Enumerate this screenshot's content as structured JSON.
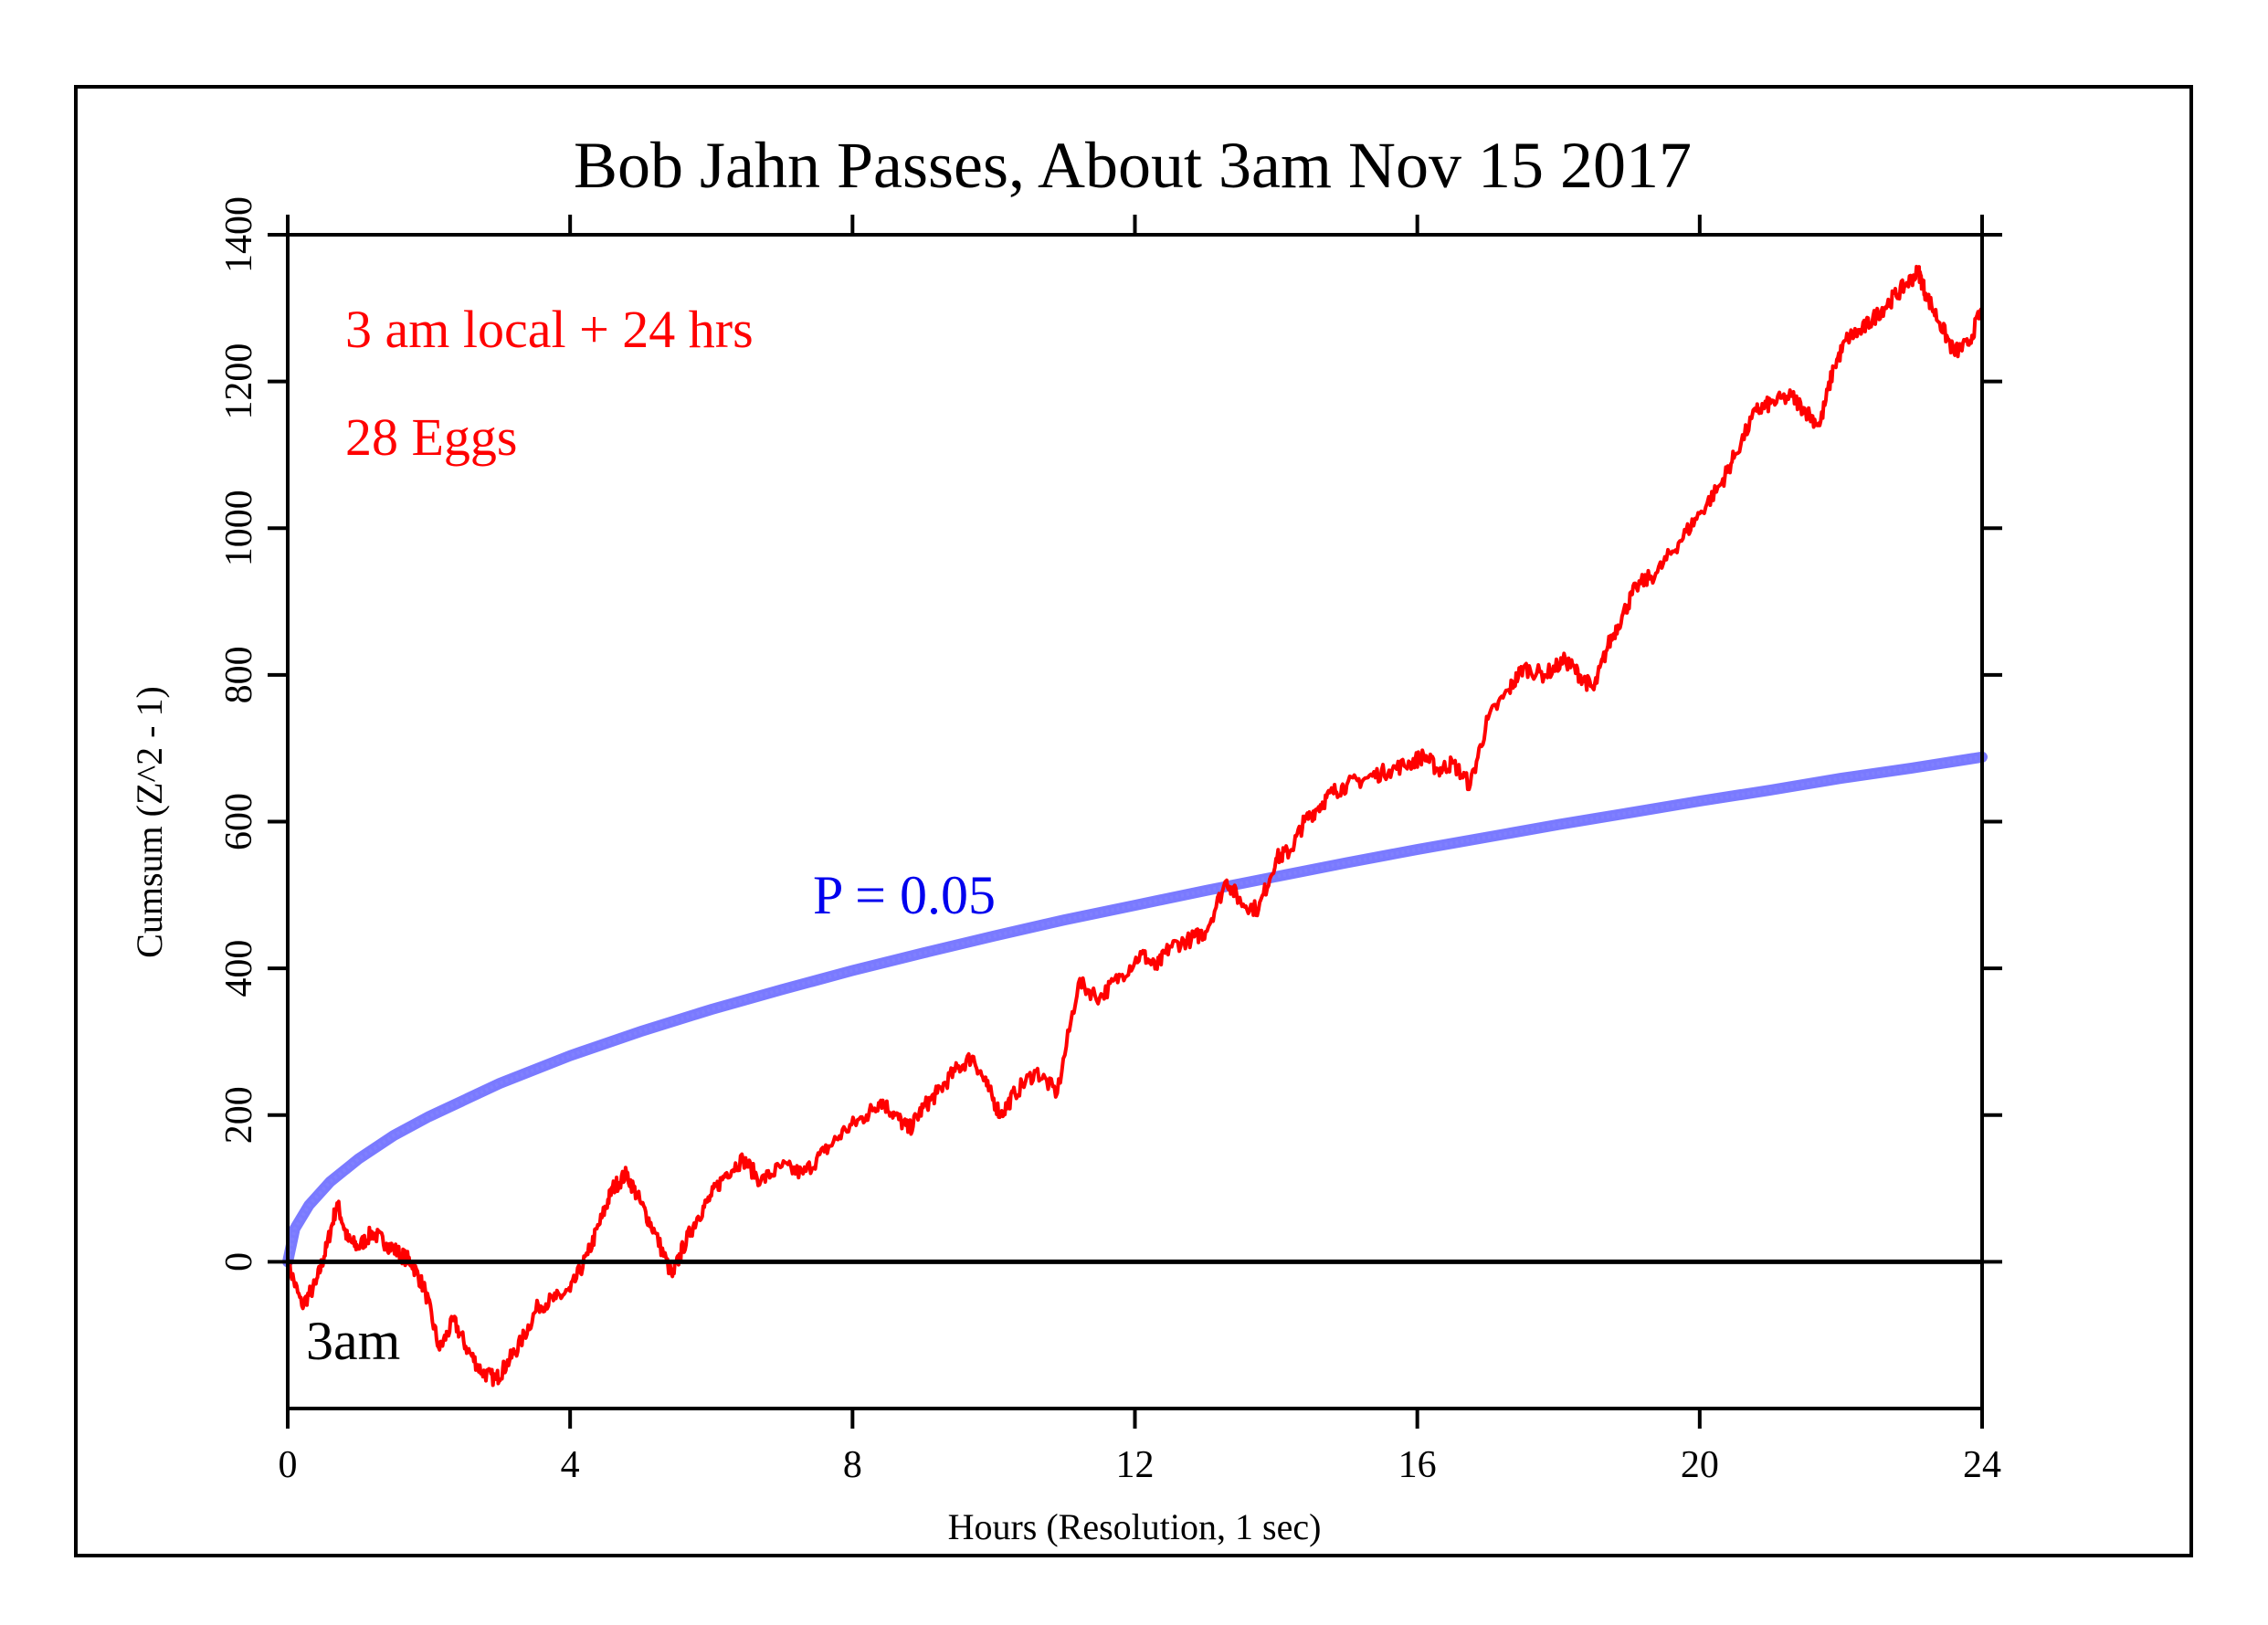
{
  "chart_data": {
    "type": "line",
    "title": "Bob Jahn Passes, About 3am Nov 15 2017",
    "xlabel": "Hours (Resolution, 1 sec)",
    "ylabel": "Cumsum (Z^2 - 1)",
    "xlim": [
      0,
      24
    ],
    "ylim": [
      -200,
      1400
    ],
    "xticks": [
      "0",
      "4",
      "8",
      "12",
      "16",
      "20",
      "24"
    ],
    "yticks": [
      "0",
      "200",
      "400",
      "600",
      "800",
      "1000",
      "1200",
      "1400"
    ],
    "grid": false,
    "annotations": {
      "period": "3 am local + 24 hrs",
      "eggs": "28 Eggs",
      "probability": "P = 0.05",
      "event_marker": "3am"
    },
    "colors": {
      "cumsum": "#ff0000",
      "probability": "#3333ff",
      "axis": "#000000"
    },
    "series": [
      {
        "key": "cumsum",
        "x": [
          0,
          0.2,
          0.4,
          0.55,
          0.7,
          0.85,
          1.0,
          1.2,
          1.4,
          1.6,
          1.75,
          1.95,
          2.15,
          2.35,
          2.55,
          2.75,
          2.95,
          3.1,
          3.3,
          3.55,
          3.8,
          4.0,
          4.25,
          4.45,
          4.6,
          4.8,
          5.0,
          5.2,
          5.45,
          5.6,
          5.8,
          6.0,
          6.2,
          6.45,
          6.7,
          7.0,
          7.3,
          7.6,
          7.9,
          8.2,
          8.4,
          8.6,
          8.8,
          9.0,
          9.2,
          9.45,
          9.7,
          9.9,
          10.1,
          10.3,
          10.6,
          10.9,
          11.2,
          11.5,
          11.8,
          12.1,
          12.3,
          12.5,
          12.8,
          13.0,
          13.3,
          13.5,
          13.75,
          14.0,
          14.2,
          14.4,
          14.6,
          14.8,
          15.0,
          15.3,
          15.6,
          15.9,
          16.1,
          16.3,
          16.5,
          16.75,
          17.0,
          17.3,
          17.5,
          17.8,
          18.1,
          18.3,
          18.5,
          18.7,
          18.9,
          19.1,
          19.4,
          19.7,
          20.0,
          20.3,
          20.5,
          20.8,
          21.0,
          21.3,
          21.5,
          21.7,
          21.9,
          22.1,
          22.3,
          22.5,
          22.7,
          22.9,
          23.1,
          23.2,
          23.4,
          23.6,
          23.8,
          24.0
        ],
        "y": [
          0,
          -60,
          -30,
          20,
          80,
          30,
          20,
          40,
          25,
          10,
          0,
          -40,
          -120,
          -80,
          -120,
          -150,
          -160,
          -140,
          -110,
          -60,
          -50,
          -40,
          10,
          60,
          100,
          120,
          80,
          40,
          -20,
          20,
          60,
          90,
          120,
          140,
          110,
          130,
          120,
          150,
          180,
          200,
          220,
          200,
          180,
          210,
          230,
          260,
          280,
          240,
          200,
          230,
          260,
          230,
          380,
          360,
          390,
          420,
          400,
          430,
          440,
          450,
          520,
          490,
          480,
          550,
          560,
          600,
          620,
          640,
          650,
          660,
          670,
          680,
          690,
          670,
          680,
          650,
          740,
          780,
          810,
          800,
          820,
          800,
          780,
          840,
          880,
          920,
          940,
          980,
          1020,
          1060,
          1100,
          1160,
          1170,
          1180,
          1160,
          1140,
          1220,
          1260,
          1270,
          1290,
          1310,
          1330,
          1350,
          1320,
          1280,
          1240,
          1250,
          1300
        ]
      },
      {
        "key": "probability",
        "x": [
          0,
          0.1,
          0.3,
          0.6,
          1,
          1.5,
          2,
          3,
          4,
          5,
          6,
          7,
          8,
          9,
          10,
          11,
          12,
          13,
          14,
          15,
          16,
          17,
          18,
          19,
          20,
          21,
          22,
          23,
          24
        ],
        "y": [
          0,
          45,
          77,
          109,
          140,
          172,
          198,
          243,
          281,
          314,
          344,
          371,
          397,
          421,
          444,
          466,
          486,
          506,
          525,
          544,
          562,
          579,
          596,
          612,
          628,
          643,
          659,
          673,
          688
        ]
      }
    ]
  }
}
